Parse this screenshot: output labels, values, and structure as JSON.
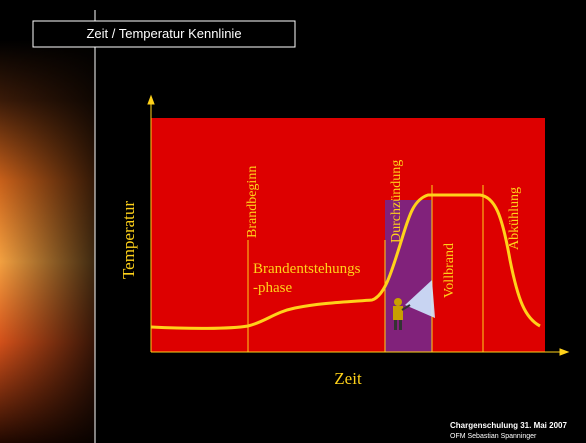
{
  "header": {
    "title": "Zeit / Temperatur Kennlinie"
  },
  "diagram": {
    "y_axis_label": "Temperatur",
    "x_axis_label": "Zeit",
    "phases": [
      {
        "label": "Brandbeginn"
      },
      {
        "label": "Durchzündung"
      },
      {
        "label": "Vollbrand"
      },
      {
        "label": "Abkühlung"
      }
    ],
    "phase_text_lines": [
      "Brandentstehungs",
      "-phase"
    ]
  },
  "footer": {
    "event": "Chargenschulung 31. Mai 2007",
    "author": "OFM Sebastian Spanninger"
  }
}
